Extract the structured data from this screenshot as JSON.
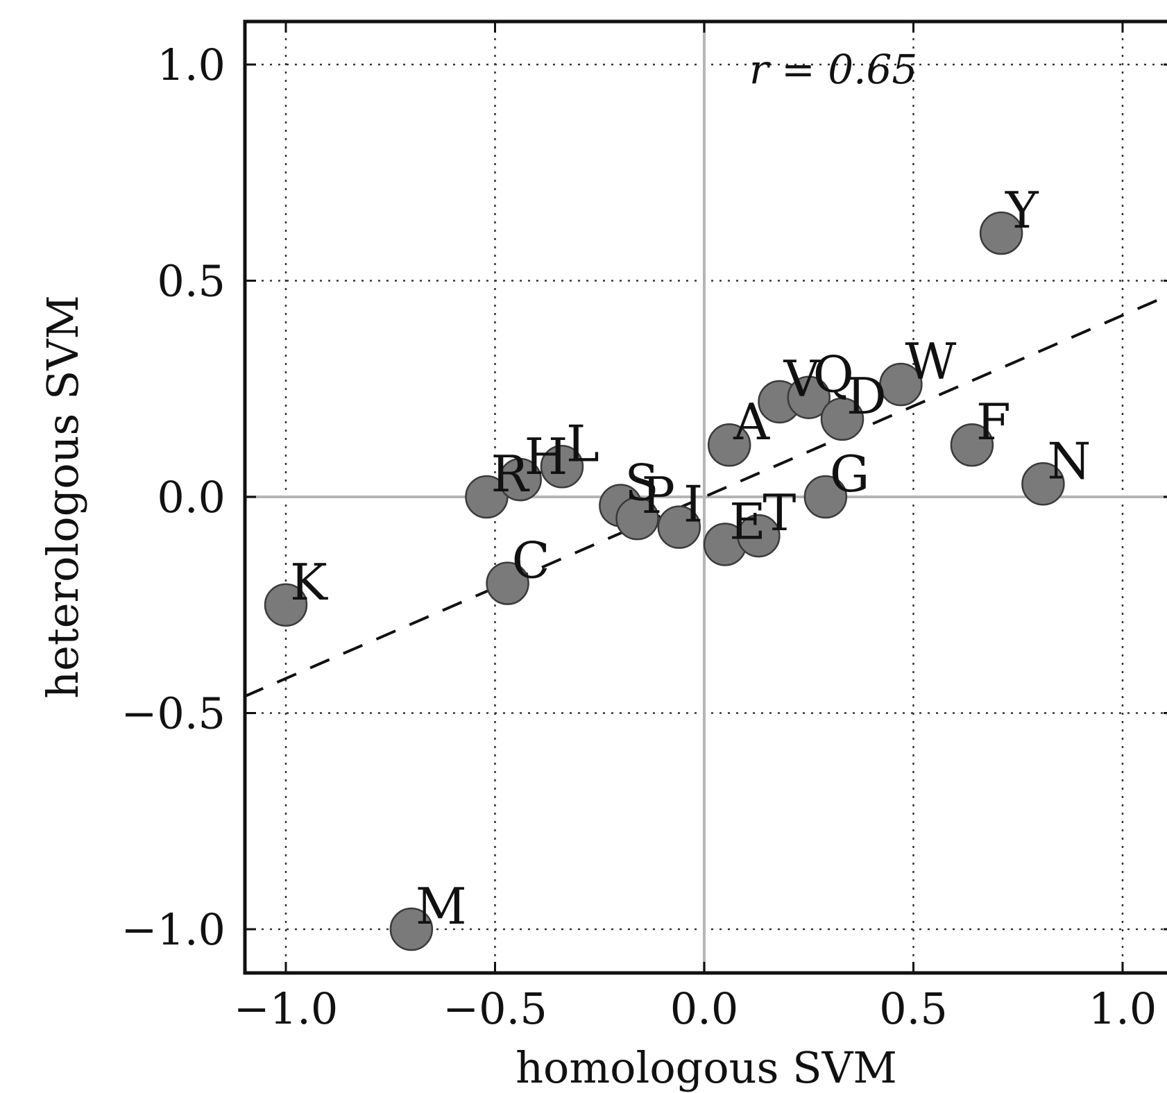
{
  "chart_data": {
    "type": "scatter",
    "xlabel": "homologous SVM",
    "ylabel": "heterologous SVM",
    "xlim": [
      -1.1,
      1.1
    ],
    "ylim": [
      -1.1,
      1.1
    ],
    "xticks": [
      -1.0,
      -0.5,
      0.0,
      0.5,
      1.0
    ],
    "yticks": [
      -1.0,
      -0.5,
      0.0,
      0.5,
      1.0
    ],
    "xtick_labels": [
      "−1.0",
      "−0.5",
      "0.0",
      "0.5",
      "1.0"
    ],
    "ytick_labels": [
      "−1.0",
      "−0.5",
      "0.0",
      "0.5",
      "1.0"
    ],
    "grid": true,
    "annotation": "r = 0.65",
    "fit_line": {
      "slope": 0.42,
      "intercept": 0.0
    },
    "points": [
      {
        "label": "K",
        "x": -1.0,
        "y": -0.25
      },
      {
        "label": "M",
        "x": -0.7,
        "y": -1.0
      },
      {
        "label": "R",
        "x": -0.52,
        "y": 0.0
      },
      {
        "label": "H",
        "x": -0.44,
        "y": 0.04
      },
      {
        "label": "L",
        "x": -0.34,
        "y": 0.07
      },
      {
        "label": "C",
        "x": -0.47,
        "y": -0.2
      },
      {
        "label": "S",
        "x": -0.2,
        "y": -0.02
      },
      {
        "label": "P",
        "x": -0.16,
        "y": -0.05
      },
      {
        "label": "I",
        "x": -0.06,
        "y": -0.07
      },
      {
        "label": "E",
        "x": 0.05,
        "y": -0.11
      },
      {
        "label": "T",
        "x": 0.13,
        "y": -0.09
      },
      {
        "label": "A",
        "x": 0.06,
        "y": 0.12
      },
      {
        "label": "V",
        "x": 0.18,
        "y": 0.22
      },
      {
        "label": "Q",
        "x": 0.25,
        "y": 0.23
      },
      {
        "label": "D",
        "x": 0.33,
        "y": 0.18
      },
      {
        "label": "W",
        "x": 0.47,
        "y": 0.26
      },
      {
        "label": "G",
        "x": 0.29,
        "y": 0.0
      },
      {
        "label": "F",
        "x": 0.64,
        "y": 0.12
      },
      {
        "label": "N",
        "x": 0.81,
        "y": 0.03
      },
      {
        "label": "Y",
        "x": 0.71,
        "y": 0.61
      }
    ]
  }
}
